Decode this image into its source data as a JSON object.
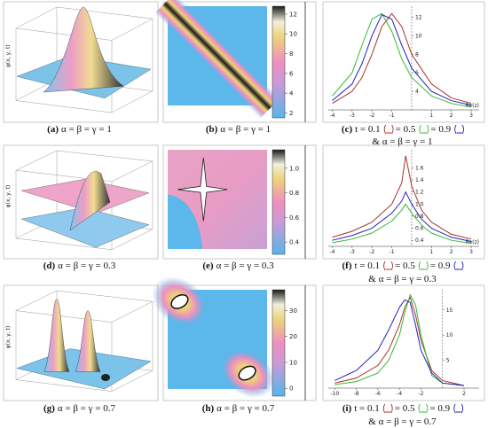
{
  "figure": {
    "panels": [
      {
        "label": "(a)",
        "caption": "α = β = γ = 1",
        "z_label": "φ(x, y, t)"
      },
      {
        "label": "(b)",
        "caption": "α = β = γ = 1",
        "colorbar": {
          "lim": [
            1.5,
            12.8
          ],
          "ticks": [
            12,
            10,
            8,
            6,
            4,
            2
          ]
        }
      },
      {
        "label": "(c)",
        "caption_line2": "& α = β = γ = 1",
        "chart_data": {
          "type": "line",
          "x": [
            -4,
            -3,
            -2.5,
            -2,
            -1.5,
            -1,
            -0.5,
            0,
            1,
            2,
            3
          ],
          "series": [
            {
              "name": "t = 0.1",
              "color": "#a3322a",
              "values": [
                2.7,
                4,
                5.5,
                8,
                11,
                12.4,
                11,
                8,
                4.8,
                3.3,
                2.7
              ]
            },
            {
              "name": "= 0.5",
              "color": "#33bb33",
              "values": [
                3.5,
                6,
                9,
                11.8,
                12.4,
                10.5,
                7.5,
                5.5,
                3.5,
                2.7,
                2.3
              ]
            },
            {
              "name": "= 0.9",
              "color": "#2222bb",
              "values": [
                3,
                4.8,
                7,
                10,
                12.3,
                11.8,
                9,
                6.5,
                4,
                3,
                2.5
              ]
            }
          ],
          "xlim": [
            -4.2,
            3.4
          ],
          "ylim": [
            2,
            13.2
          ],
          "xticks": [
            -4,
            -3,
            -2,
            -1,
            1,
            2,
            3
          ],
          "yticks": [
            4,
            6,
            8,
            10,
            12
          ],
          "x_label": "Re(z)"
        }
      },
      {
        "label": "(d)",
        "caption": "α = β = γ = 0.3",
        "z_label": "φ(x, y, t)"
      },
      {
        "label": "(e)",
        "caption": "α = β = γ = 0.3",
        "colorbar": {
          "lim": [
            0.3,
            1.15
          ],
          "ticks": [
            {
              "value": 1,
              "label": "1.0"
            },
            0.8,
            0.6,
            0.4
          ]
        }
      },
      {
        "label": "(f)",
        "caption_line2": "& α = β = γ = 0.3",
        "chart_data": {
          "type": "line",
          "x": [
            -4,
            -3,
            -2,
            -1,
            -0.5,
            -0.3,
            0,
            0.5,
            1,
            2,
            3
          ],
          "series": [
            {
              "name": "t = 0.1",
              "color": "#a3322a",
              "values": [
                0.45,
                0.55,
                0.7,
                1.0,
                1.35,
                1.8,
                1.3,
                0.9,
                0.7,
                0.5,
                0.42
              ]
            },
            {
              "name": "= 0.5",
              "color": "#33bb33",
              "values": [
                0.36,
                0.42,
                0.52,
                0.72,
                0.9,
                1.0,
                0.85,
                0.65,
                0.52,
                0.4,
                0.35
              ]
            },
            {
              "name": "= 0.9",
              "color": "#2222bb",
              "values": [
                0.4,
                0.48,
                0.6,
                0.85,
                1.05,
                1.2,
                1.0,
                0.75,
                0.6,
                0.45,
                0.38
              ]
            }
          ],
          "xlim": [
            -4.2,
            3.4
          ],
          "ylim": [
            0.3,
            1.9
          ],
          "xticks": [
            -4,
            -3,
            -2,
            -1,
            1,
            2,
            3
          ],
          "yticks": [
            0.4,
            0.6,
            0.8,
            {
              "value": 1,
              "label": "1.0"
            },
            1.2,
            1.4,
            1.6
          ],
          "x_label": "Re(z)"
        }
      },
      {
        "label": "(g)",
        "caption": "α = β = γ = 0.7",
        "z_label": "φ(x, y, t)"
      },
      {
        "label": "(h)",
        "caption": "α = β = γ = 0.7",
        "colorbar": {
          "lim": [
            -3,
            38
          ],
          "ticks": [
            30,
            20,
            10,
            0
          ]
        }
      },
      {
        "label": "(i)",
        "caption_line2": "& α = β = γ = 0.7",
        "chart_data": {
          "type": "line",
          "x": [
            -10,
            -8,
            -6,
            -5,
            -4,
            -3.5,
            -3,
            -2.5,
            -2,
            -1,
            0,
            2
          ],
          "series": [
            {
              "name": "t = 0.1",
              "color": "#a3322a",
              "values": [
                0.5,
                1.5,
                4,
                7,
                12,
                15.5,
                17.5,
                14,
                9,
                3,
                1,
                0
              ]
            },
            {
              "name": "= 0.5",
              "color": "#33bb33",
              "values": [
                0.2,
                0.8,
                2.5,
                5,
                10,
                14.5,
                18,
                16,
                10,
                2,
                0.5,
                0
              ]
            },
            {
              "name": "= 0.9",
              "color": "#2222bb",
              "values": [
                1,
                3,
                7,
                11,
                15.5,
                17,
                16.5,
                12,
                7,
                2.5,
                0.5,
                0
              ]
            }
          ],
          "xlim": [
            -10.6,
            3.4
          ],
          "ylim": [
            -0.5,
            19
          ],
          "xticks": [
            -10,
            -8,
            -6,
            -4,
            -2,
            2
          ],
          "yticks": [
            5,
            10,
            15
          ]
        }
      }
    ]
  }
}
